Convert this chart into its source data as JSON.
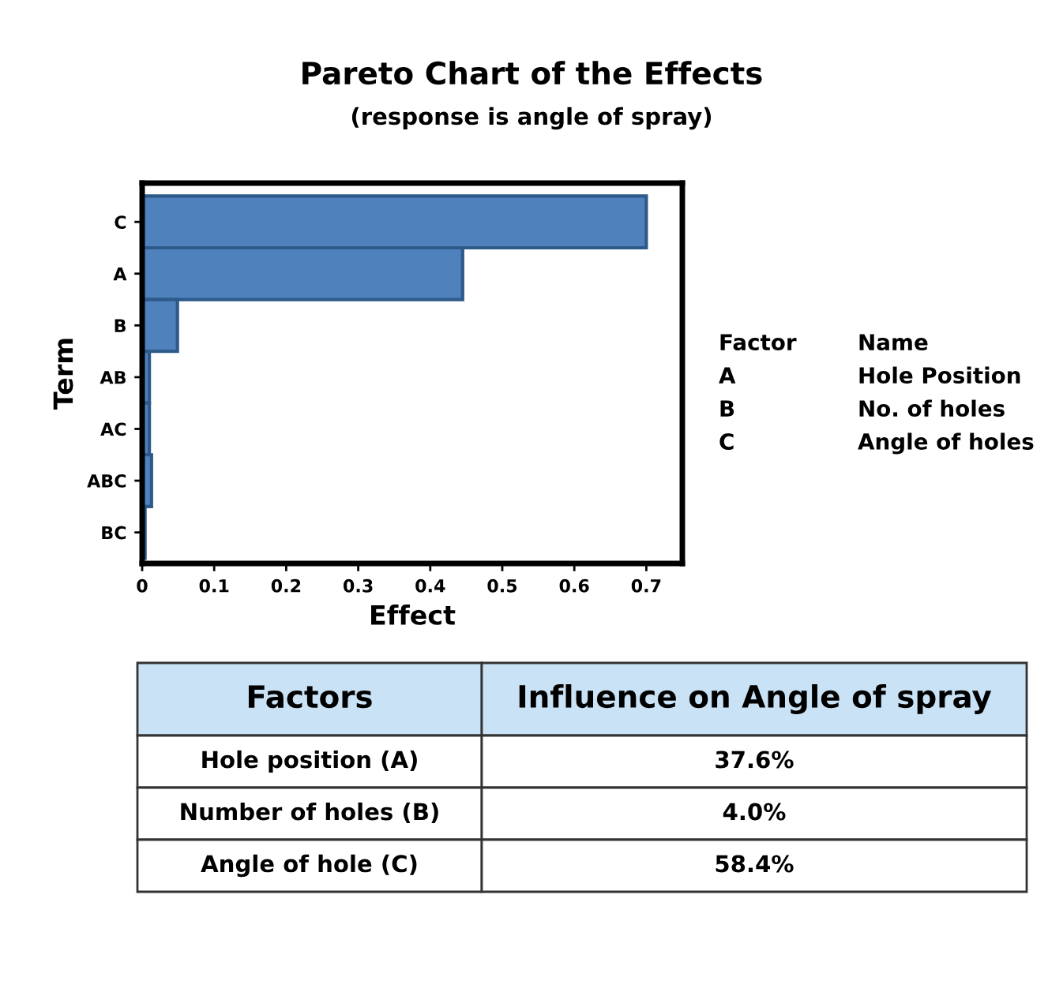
{
  "chart_data": {
    "type": "bar",
    "orientation": "horizontal",
    "title": "Pareto Chart of the Effects",
    "subtitle": "(response is angle of spray)",
    "xlabel": "Effect",
    "ylabel": "Term",
    "categories": [
      "C",
      "A",
      "B",
      "AB",
      "AC",
      "ABC",
      "BC"
    ],
    "values": [
      0.7,
      0.445,
      0.049,
      0.01,
      0.01,
      0.013,
      0.004
    ],
    "color": "#4f81bd",
    "xlim": [
      0,
      0.75
    ],
    "xticks": [
      0,
      0.1,
      0.2,
      0.3,
      0.4,
      0.5,
      0.6,
      0.7
    ],
    "grid": false,
    "legend": false,
    "annotations": [
      "Factor",
      "Name",
      "A",
      "Hole Position",
      "B",
      "No. of holes",
      "C",
      "Angle of holes",
      "Factors",
      "Influence on Angle of spray",
      "Hole position (A)",
      "37.6%",
      "Number of holes (B)",
      "4.0%",
      "Angle of hole (C)",
      "58.4%"
    ]
  }
}
